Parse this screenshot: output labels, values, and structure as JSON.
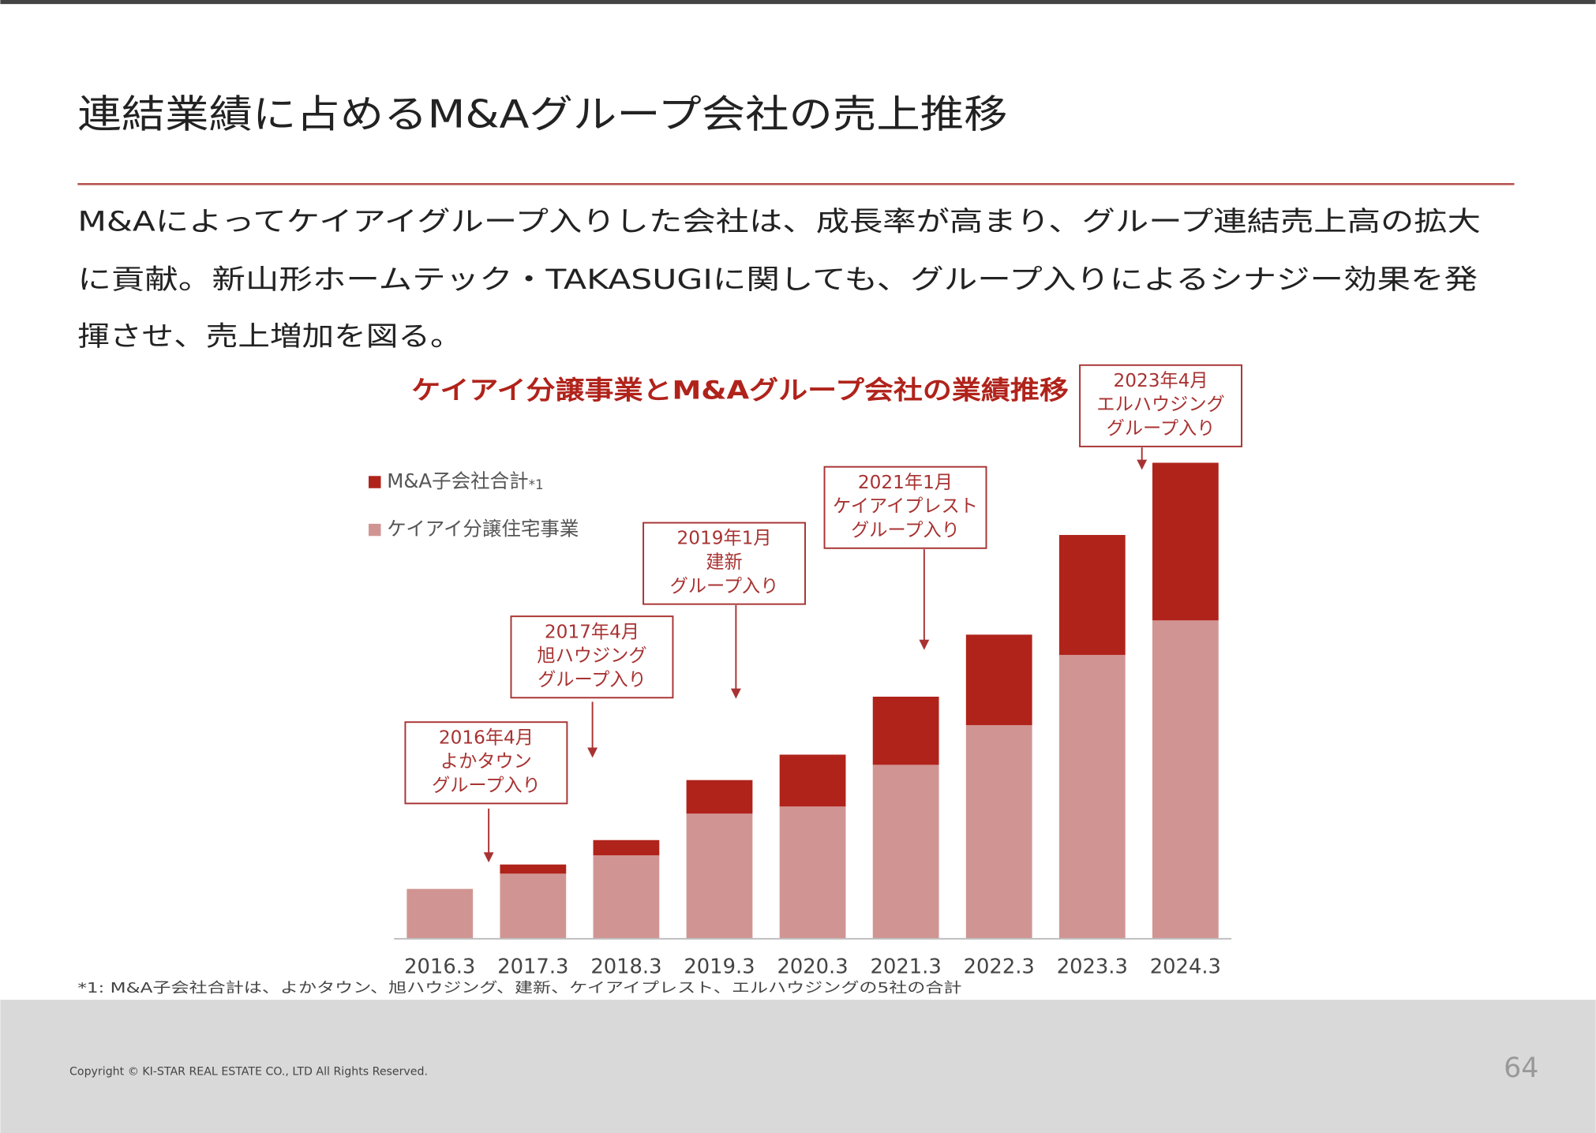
{
  "header": {
    "title": "連結業績に占めるM&Aグループ会社の売上推移"
  },
  "body": [
    "M&Aによってケイアイグループ入りした会社は、成長率が高まり、グループ連結売上高の拡大",
    "に貢献。新山形ホームテック・TAKASUGIに関しても、グループ入りによるシナジー効果を発",
    "揮させ、売上増加を図る。"
  ],
  "chart_data": {
    "type": "stacked-bar",
    "title": "ケイアイ分譲事業とM&Aグループ会社の業績推移",
    "categories": [
      "2016.3",
      "2017.3",
      "2018.3",
      "2019.3",
      "2020.3",
      "2021.3",
      "2022.3",
      "2023.3",
      "2024.3"
    ],
    "series": [
      {
        "name": "M&A子会社合計",
        "name_note": "*1",
        "color": "#b0231b",
        "values": [
          0,
          9,
          15,
          33,
          51,
          67,
          89,
          118,
          155
        ]
      },
      {
        "name": "ケイアイ分譲住宅事業",
        "color": "#d09593",
        "values": [
          49,
          64,
          82,
          123,
          130,
          171,
          210,
          279,
          313
        ]
      }
    ],
    "ylim": [
      0,
      500
    ],
    "annotations": [
      {
        "lines": [
          "2016年4月",
          "よかタウン",
          "グループ入り"
        ]
      },
      {
        "lines": [
          "2017年4月",
          "旭ハウジング",
          "グループ入り"
        ]
      },
      {
        "lines": [
          "2019年1月",
          "建新",
          "グループ入り"
        ]
      },
      {
        "lines": [
          "2021年1月",
          "ケイアイプレスト",
          "グループ入り"
        ]
      },
      {
        "lines": [
          "2023年4月",
          "エルハウジング",
          "グループ入り"
        ]
      }
    ],
    "footnote": "*1: M&A子会社合計は、よかタウン、旭ハウジング、建新、ケイアイプレスト、エルハウジングの5社の合計"
  },
  "footer": {
    "copyright": "Copyright © KI-STAR REAL ESTATE CO., LTD All Rights Reserved.",
    "page": "64"
  }
}
